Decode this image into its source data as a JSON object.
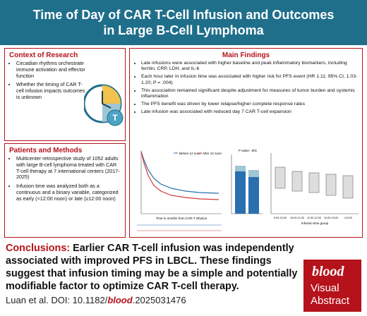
{
  "header": {
    "title": "Time of Day of CAR T-Cell Infusion and Outcomes in Large B-Cell Lymphoma"
  },
  "context": {
    "title": "Context of Research",
    "bullets": [
      "Circadian rhythms orchestrate immune activation and effector function",
      "Whether the timing of CAR T-cell infusion impacts outcomes is unknown"
    ]
  },
  "methods": {
    "title": "Patients and Methods",
    "bullets": [
      "Multicenter retrospective study of 1052 adults with large B-cell lymphoma treated with CAR T-cell therapy at 7 international centers (2017-2025)",
      "Infusion time was analyzed both as a continuous and a binary variable, categorized as early (<12:00 noon) or late (≥12:00 noon)"
    ]
  },
  "findings": {
    "title": "Main Findings",
    "bullets": [
      "Late infusions were associated with higher baseline and peak inflammatory biomarkers, including ferritin, CRP, LDH, and IL-6",
      "Each hour later in infusion time was associated with higher risk for PFS event (HR 1.11; 95% CI, 1.03-1.20; P = .004)",
      "This association remained significant despite adjustment for measures of tumor burden and systemic inflammation",
      "The PFS benefit was driven by lower relapse/higher complete response rates",
      "Late infusion was associated with reduced day 7 CAR T-cell expansion"
    ]
  },
  "figures": {
    "km_legend": [
      "Before 12 noon",
      "After 12 noon"
    ],
    "km_xlabel": "Time in months from CAR-T infusion",
    "bar_pvalue": "P value: .001",
    "box_xlabel": "Infusion time group",
    "box_groups": [
      "9:00-10:00",
      "10:00-11:00",
      "11:00-12:00",
      "12:00-13:00",
      ">13:00"
    ]
  },
  "conclusions": {
    "label": "Conclusions:",
    "text": "Earlier CAR T-cell infusion was independently associated with improved PFS in LBCL. These findings suggest that infusion timing may be a simple and potentially modifiable factor to optimize CAR T-cell therapy."
  },
  "citation": {
    "prefix": "Luan et al. DOI: 10.1182/",
    "journal": "blood",
    "suffix": ".2025031476"
  },
  "logo": {
    "brand": "blood",
    "line1": "Visual",
    "line2": "Abstract"
  }
}
